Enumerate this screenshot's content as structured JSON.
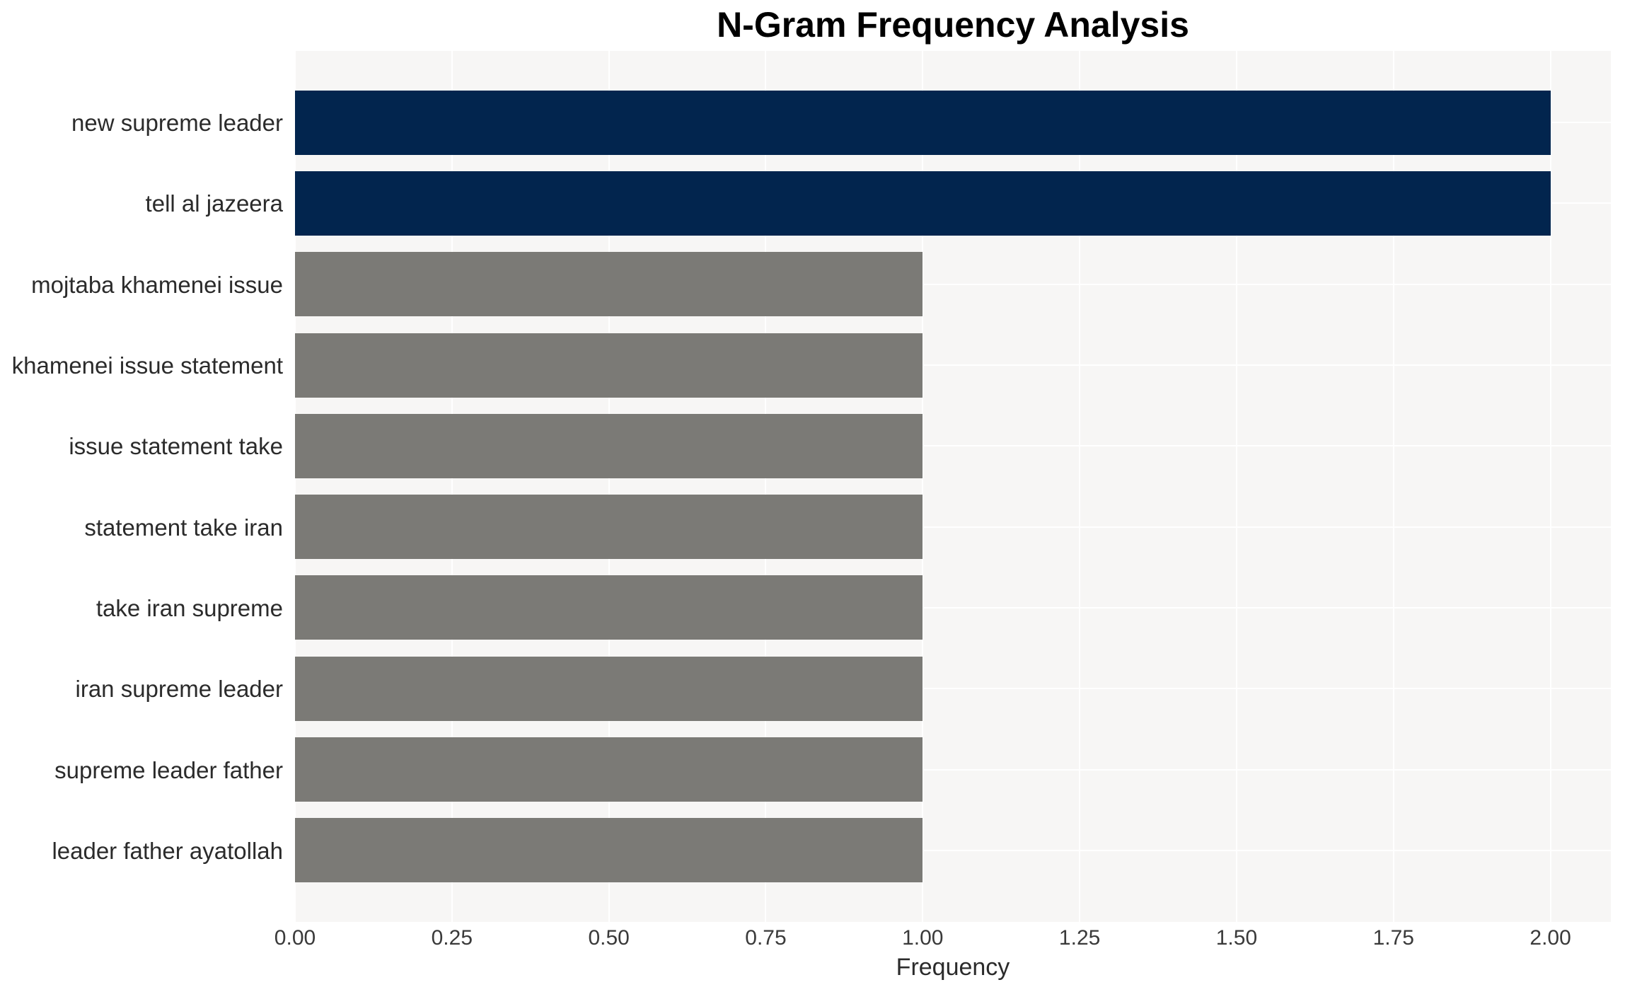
{
  "chart_data": {
    "type": "bar",
    "orientation": "horizontal",
    "title": "N-Gram Frequency Analysis",
    "xlabel": "Frequency",
    "ylabel": "",
    "categories": [
      "new supreme leader",
      "tell al jazeera",
      "mojtaba khamenei issue",
      "khamenei issue statement",
      "issue statement take",
      "statement take iran",
      "take iran supreme",
      "iran supreme leader",
      "supreme leader father",
      "leader father ayatollah"
    ],
    "values": [
      2,
      2,
      1,
      1,
      1,
      1,
      1,
      1,
      1,
      1
    ],
    "bar_colors": [
      "#02254e",
      "#02254e",
      "#7b7a76",
      "#7b7a76",
      "#7b7a76",
      "#7b7a76",
      "#7b7a76",
      "#7b7a76",
      "#7b7a76",
      "#7b7a76"
    ],
    "xlim": [
      0,
      2.1
    ],
    "xticks": [
      0,
      0.25,
      0.5,
      0.75,
      1,
      1.25,
      1.5,
      1.75,
      2
    ],
    "xtick_labels": [
      "0.00",
      "0.25",
      "0.50",
      "0.75",
      "1.00",
      "1.25",
      "1.50",
      "1.75",
      "2.00"
    ],
    "grid": true,
    "legend_position": "none",
    "colors": {
      "highlight_bar": "#02254e",
      "base_bar": "#7b7a76",
      "plot_background": "#f7f6f5",
      "gridline": "#ffffff",
      "title_text": "#000000",
      "label_text": "#2b2b2b"
    }
  }
}
